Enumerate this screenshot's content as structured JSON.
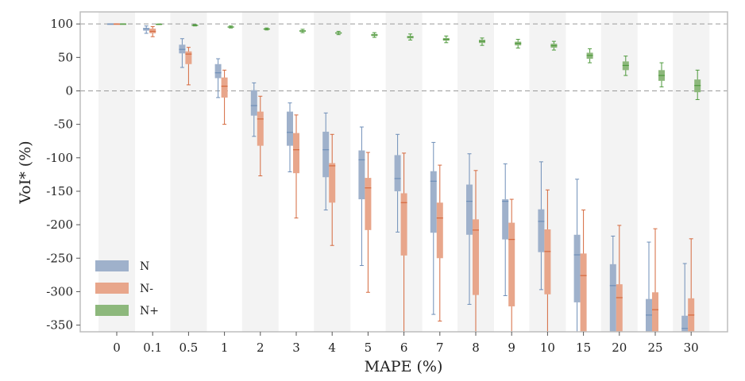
{
  "chart_data": {
    "type": "box",
    "title": "",
    "xlabel": "MAPE (%)",
    "ylabel": "VoI* (%)",
    "categories": [
      "0",
      "0.1",
      "0.5",
      "1",
      "2",
      "3",
      "4",
      "5",
      "6",
      "7",
      "8",
      "9",
      "10",
      "15",
      "20",
      "25",
      "30"
    ],
    "ylim": [
      -360,
      118
    ],
    "yticks": [
      100,
      50,
      0,
      -50,
      -100,
      -150,
      -200,
      -250,
      -300,
      -350
    ],
    "reference_lines": [
      100,
      0
    ],
    "grid": false,
    "alternating_column_shading": true,
    "legend_position": "lower-left",
    "series": [
      {
        "name": "N",
        "color": "#9fb1cb",
        "edge_color": "#6f8fb8",
        "boxes": [
          {
            "category": "0",
            "whislo": 100,
            "q1": 100,
            "med": 100,
            "q3": 100,
            "whishi": 100
          },
          {
            "category": "0.1",
            "whislo": 86,
            "q1": 90,
            "med": 93,
            "q3": 94,
            "whishi": 97
          },
          {
            "category": "0.5",
            "whislo": 35,
            "q1": 56,
            "med": 62,
            "q3": 69,
            "whishi": 78
          },
          {
            "category": "1",
            "whislo": -10,
            "q1": 19,
            "med": 27,
            "q3": 40,
            "whishi": 48
          },
          {
            "category": "2",
            "whislo": -68,
            "q1": -37,
            "med": -22,
            "q3": 1,
            "whishi": 12
          },
          {
            "category": "3",
            "whislo": -121,
            "q1": -82,
            "med": -62,
            "q3": -31,
            "whishi": -18
          },
          {
            "category": "4",
            "whislo": -178,
            "q1": -129,
            "med": -88,
            "q3": -61,
            "whishi": -33
          },
          {
            "category": "5",
            "whislo": -261,
            "q1": -162,
            "med": -103,
            "q3": -89,
            "whishi": -54
          },
          {
            "category": "6",
            "whislo": -211,
            "q1": -150,
            "med": -131,
            "q3": -96,
            "whishi": -65
          },
          {
            "category": "7",
            "whislo": -334,
            "q1": -212,
            "med": -135,
            "q3": -120,
            "whishi": -77
          },
          {
            "category": "8",
            "whislo": -319,
            "q1": -215,
            "med": -165,
            "q3": -140,
            "whishi": -94
          },
          {
            "category": "9",
            "whislo": -306,
            "q1": -222,
            "med": -165,
            "q3": -162,
            "whishi": -109
          },
          {
            "category": "10",
            "whislo": -297,
            "q1": -241,
            "med": -195,
            "q3": -177,
            "whishi": -106
          },
          {
            "category": "15",
            "whislo": -360,
            "q1": -316,
            "med": -245,
            "q3": -215,
            "whishi": -132
          },
          {
            "category": "20",
            "whislo": -360,
            "q1": -360,
            "med": -291,
            "q3": -259,
            "whishi": -217
          },
          {
            "category": "25",
            "whislo": -360,
            "q1": -360,
            "med": -335,
            "q3": -311,
            "whishi": -226
          },
          {
            "category": "30",
            "whislo": -360,
            "q1": -360,
            "med": -355,
            "q3": -336,
            "whishi": -258
          }
        ]
      },
      {
        "name": "N-",
        "color": "#e8a68b",
        "edge_color": "#d5693e",
        "boxes": [
          {
            "category": "0",
            "whislo": 100,
            "q1": 100,
            "med": 100,
            "q3": 100,
            "whishi": 100
          },
          {
            "category": "0.1",
            "whislo": 81,
            "q1": 86,
            "med": 89,
            "q3": 93,
            "whishi": 96
          },
          {
            "category": "0.5",
            "whislo": 9,
            "q1": 40,
            "med": 55,
            "q3": 59,
            "whishi": 65
          },
          {
            "category": "1",
            "whislo": -50,
            "q1": -10,
            "med": 7,
            "q3": 20,
            "whishi": 31
          },
          {
            "category": "2",
            "whislo": -127,
            "q1": -82,
            "med": -42,
            "q3": -31,
            "whishi": -8
          },
          {
            "category": "3",
            "whislo": -190,
            "q1": -123,
            "med": -88,
            "q3": -63,
            "whishi": -36
          },
          {
            "category": "4",
            "whislo": -231,
            "q1": -167,
            "med": -112,
            "q3": -108,
            "whishi": -65
          },
          {
            "category": "5",
            "whislo": -301,
            "q1": -208,
            "med": -145,
            "q3": -130,
            "whishi": -92
          },
          {
            "category": "6",
            "whislo": -360,
            "q1": -246,
            "med": -167,
            "q3": -153,
            "whishi": -93
          },
          {
            "category": "7",
            "whislo": -344,
            "q1": -250,
            "med": -190,
            "q3": -167,
            "whishi": -111
          },
          {
            "category": "8",
            "whislo": -360,
            "q1": -305,
            "med": -208,
            "q3": -192,
            "whishi": -119
          },
          {
            "category": "9",
            "whislo": -360,
            "q1": -322,
            "med": -222,
            "q3": -197,
            "whishi": -162
          },
          {
            "category": "10",
            "whislo": -360,
            "q1": -304,
            "med": -240,
            "q3": -207,
            "whishi": -148
          },
          {
            "category": "15",
            "whislo": -360,
            "q1": -360,
            "med": -276,
            "q3": -243,
            "whishi": -178
          },
          {
            "category": "20",
            "whislo": -360,
            "q1": -360,
            "med": -309,
            "q3": -289,
            "whishi": -201
          },
          {
            "category": "25",
            "whislo": -360,
            "q1": -360,
            "med": -327,
            "q3": -301,
            "whishi": -206
          },
          {
            "category": "30",
            "whislo": -360,
            "q1": -360,
            "med": -335,
            "q3": -310,
            "whishi": -221
          }
        ]
      },
      {
        "name": "N+",
        "color": "#8db87c",
        "edge_color": "#4e9a3c",
        "boxes": [
          {
            "category": "0",
            "whislo": 100,
            "q1": 100,
            "med": 100,
            "q3": 100,
            "whishi": 100
          },
          {
            "category": "0.1",
            "whislo": 99,
            "q1": 99,
            "med": 99.5,
            "q3": 100,
            "whishi": 100
          },
          {
            "category": "0.5",
            "whislo": 97,
            "q1": 97.5,
            "med": 98,
            "q3": 98.5,
            "whishi": 99
          },
          {
            "category": "1",
            "whislo": 94,
            "q1": 95,
            "med": 95.5,
            "q3": 96,
            "whishi": 97
          },
          {
            "category": "2",
            "whislo": 91,
            "q1": 92,
            "med": 92.5,
            "q3": 93,
            "whishi": 94
          },
          {
            "category": "3",
            "whislo": 87,
            "q1": 88.5,
            "med": 89.5,
            "q3": 90.5,
            "whishi": 92
          },
          {
            "category": "4",
            "whislo": 84,
            "q1": 85.5,
            "med": 86.5,
            "q3": 87.5,
            "whishi": 89
          },
          {
            "category": "5",
            "whislo": 80,
            "q1": 82,
            "med": 83.5,
            "q3": 85,
            "whishi": 87
          },
          {
            "category": "6",
            "whislo": 76,
            "q1": 78.5,
            "med": 80.5,
            "q3": 82,
            "whishi": 85
          },
          {
            "category": "7",
            "whislo": 72,
            "q1": 75,
            "med": 77,
            "q3": 79,
            "whishi": 82
          },
          {
            "category": "8",
            "whislo": 68,
            "q1": 71.5,
            "med": 74,
            "q3": 76.5,
            "whishi": 79
          },
          {
            "category": "9",
            "whislo": 64,
            "q1": 68,
            "med": 71,
            "q3": 73.5,
            "whishi": 77
          },
          {
            "category": "10",
            "whislo": 61,
            "q1": 64.5,
            "med": 67.5,
            "q3": 70.5,
            "whishi": 74
          },
          {
            "category": "15",
            "whislo": 42,
            "q1": 48,
            "med": 53,
            "q3": 57,
            "whishi": 63
          },
          {
            "category": "20",
            "whislo": 23,
            "q1": 31,
            "med": 38,
            "q3": 44,
            "whishi": 52
          },
          {
            "category": "25",
            "whislo": 6,
            "q1": 15,
            "med": 23,
            "q3": 31,
            "whishi": 42
          },
          {
            "category": "30",
            "whislo": -13,
            "q1": -2,
            "med": 8,
            "q3": 17,
            "whishi": 31
          }
        ]
      }
    ]
  }
}
